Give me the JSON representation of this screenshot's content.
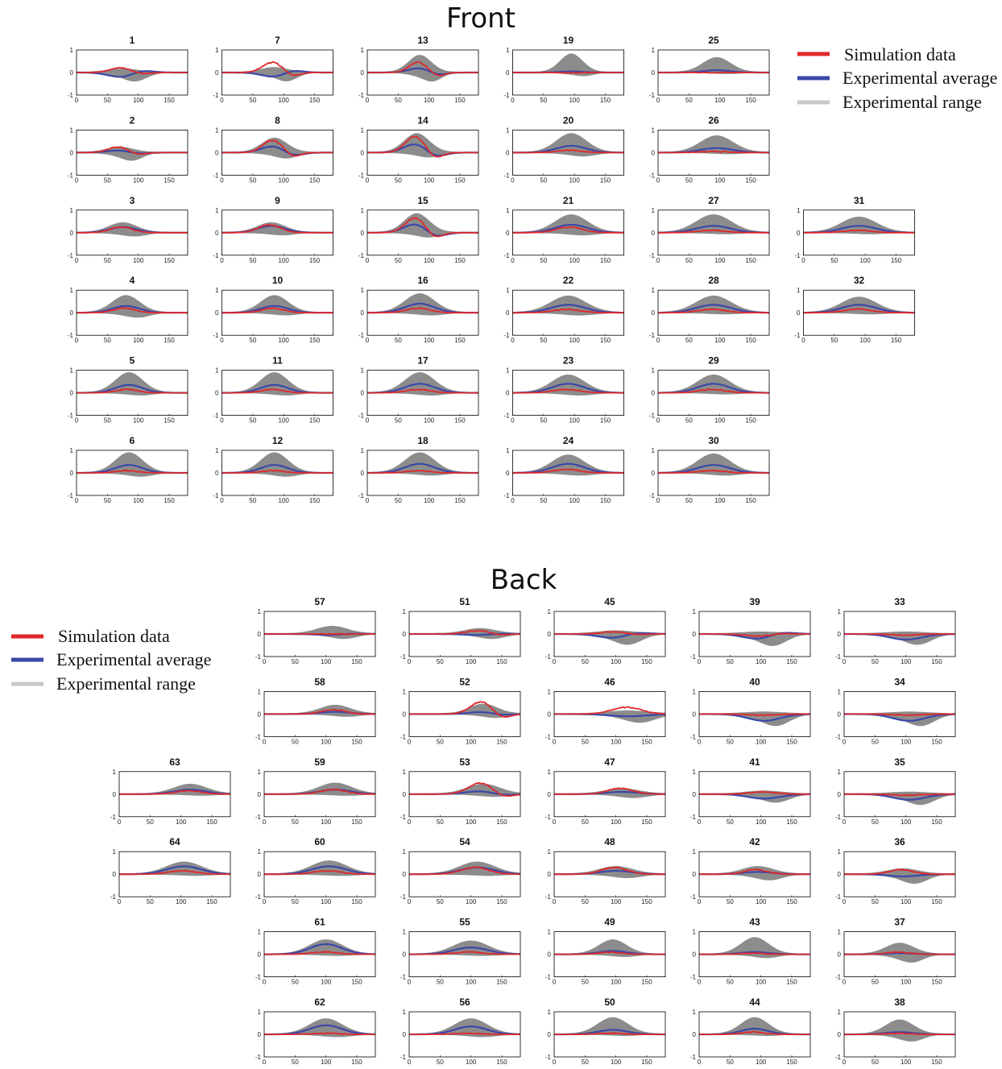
{
  "sections": {
    "front": {
      "title": "Front"
    },
    "back": {
      "title": "Back"
    }
  },
  "legend": {
    "simulation": "Simulation data",
    "average": "Experimental average",
    "range": "Experimental range"
  },
  "colors": {
    "simulation": "#e0282a",
    "average": "#3b48a8",
    "range_fill": "#8c8c8c",
    "range_legend": "#c8c8c8"
  },
  "chart_data": {
    "type": "line",
    "description_units": "x: samples 0-180, y: normalized -1 to 1",
    "xlim": [
      0,
      180
    ],
    "ylim": [
      -1,
      1
    ],
    "xticks": [
      "0",
      "50",
      "100",
      "150"
    ],
    "yticks": [
      "1",
      "0",
      "-1"
    ],
    "series_names": [
      "Simulation data",
      "Experimental average",
      "Experimental range"
    ],
    "panels": [
      {
        "id": "1",
        "group": "front",
        "peak": 75,
        "avg": -0.22,
        "sim": 0.2,
        "rlo": -0.38,
        "rhi": 0.12,
        "width": 22,
        "osc": 1
      },
      {
        "id": "7",
        "group": "front",
        "peak": 85,
        "avg": -0.2,
        "sim": 0.45,
        "rlo": -0.38,
        "rhi": 0.18,
        "width": 20,
        "osc": 1
      },
      {
        "id": "13",
        "group": "front",
        "peak": 85,
        "avg": 0.2,
        "sim": 0.45,
        "rlo": -0.4,
        "rhi": 0.72,
        "width": 18,
        "osc": 1
      },
      {
        "id": "19",
        "group": "front",
        "peak": 95,
        "avg": 0.05,
        "sim": -0.02,
        "rlo": -0.15,
        "rhi": 0.78,
        "width": 18,
        "osc": 0
      },
      {
        "id": "25",
        "group": "front",
        "peak": 95,
        "avg": 0.1,
        "sim": 0.0,
        "rlo": -0.05,
        "rhi": 0.62,
        "width": 22,
        "osc": 0
      },
      {
        "id": "2",
        "group": "front",
        "peak": 70,
        "avg": 0.1,
        "sim": 0.25,
        "rlo": -0.35,
        "rhi": 0.2,
        "width": 20,
        "osc": 1
      },
      {
        "id": "8",
        "group": "front",
        "peak": 85,
        "avg": 0.3,
        "sim": 0.55,
        "rlo": -0.25,
        "rhi": 0.6,
        "width": 20,
        "osc": 1
      },
      {
        "id": "14",
        "group": "front",
        "peak": 80,
        "avg": 0.4,
        "sim": 0.7,
        "rlo": -0.2,
        "rhi": 0.8,
        "width": 20,
        "osc": 1
      },
      {
        "id": "20",
        "group": "front",
        "peak": 95,
        "avg": 0.3,
        "sim": 0.1,
        "rlo": -0.15,
        "rhi": 0.8,
        "width": 24,
        "osc": 0
      },
      {
        "id": "26",
        "group": "front",
        "peak": 95,
        "avg": 0.2,
        "sim": 0.05,
        "rlo": -0.05,
        "rhi": 0.7,
        "width": 26,
        "osc": 0
      },
      {
        "id": "3",
        "group": "front",
        "peak": 75,
        "avg": 0.25,
        "sim": 0.25,
        "rlo": -0.15,
        "rhi": 0.4,
        "width": 22,
        "osc": 0
      },
      {
        "id": "9",
        "group": "front",
        "peak": 80,
        "avg": 0.3,
        "sim": 0.35,
        "rlo": -0.1,
        "rhi": 0.4,
        "width": 22,
        "osc": 0
      },
      {
        "id": "15",
        "group": "front",
        "peak": 80,
        "avg": 0.4,
        "sim": 0.65,
        "rlo": -0.2,
        "rhi": 0.8,
        "width": 20,
        "osc": 1
      },
      {
        "id": "21",
        "group": "front",
        "peak": 95,
        "avg": 0.35,
        "sim": 0.25,
        "rlo": -0.1,
        "rhi": 0.75,
        "width": 26,
        "osc": 0
      },
      {
        "id": "27",
        "group": "front",
        "peak": 90,
        "avg": 0.3,
        "sim": 0.1,
        "rlo": -0.05,
        "rhi": 0.75,
        "width": 28,
        "osc": 0
      },
      {
        "id": "31",
        "group": "front",
        "peak": 90,
        "avg": 0.3,
        "sim": 0.1,
        "rlo": -0.05,
        "rhi": 0.65,
        "width": 28,
        "osc": 0
      },
      {
        "id": "4",
        "group": "front",
        "peak": 80,
        "avg": 0.3,
        "sim": 0.2,
        "rlo": -0.2,
        "rhi": 0.72,
        "width": 22,
        "osc": 0
      },
      {
        "id": "10",
        "group": "front",
        "peak": 85,
        "avg": 0.3,
        "sim": 0.2,
        "rlo": -0.1,
        "rhi": 0.72,
        "width": 22,
        "osc": 0
      },
      {
        "id": "16",
        "group": "front",
        "peak": 85,
        "avg": 0.4,
        "sim": 0.2,
        "rlo": -0.1,
        "rhi": 0.8,
        "width": 24,
        "osc": 0
      },
      {
        "id": "22",
        "group": "front",
        "peak": 90,
        "avg": 0.35,
        "sim": 0.15,
        "rlo": -0.1,
        "rhi": 0.7,
        "width": 28,
        "osc": 0
      },
      {
        "id": "28",
        "group": "front",
        "peak": 90,
        "avg": 0.35,
        "sim": 0.15,
        "rlo": -0.05,
        "rhi": 0.7,
        "width": 28,
        "osc": 0
      },
      {
        "id": "32",
        "group": "front",
        "peak": 90,
        "avg": 0.35,
        "sim": 0.15,
        "rlo": -0.05,
        "rhi": 0.65,
        "width": 28,
        "osc": 0
      },
      {
        "id": "5",
        "group": "front",
        "peak": 85,
        "avg": 0.35,
        "sim": 0.15,
        "rlo": -0.1,
        "rhi": 0.85,
        "width": 22,
        "osc": 0
      },
      {
        "id": "11",
        "group": "front",
        "peak": 85,
        "avg": 0.35,
        "sim": 0.15,
        "rlo": -0.1,
        "rhi": 0.85,
        "width": 22,
        "osc": 0
      },
      {
        "id": "17",
        "group": "front",
        "peak": 85,
        "avg": 0.4,
        "sim": 0.15,
        "rlo": -0.1,
        "rhi": 0.85,
        "width": 24,
        "osc": 0
      },
      {
        "id": "23",
        "group": "front",
        "peak": 90,
        "avg": 0.4,
        "sim": 0.15,
        "rlo": -0.1,
        "rhi": 0.75,
        "width": 26,
        "osc": 0
      },
      {
        "id": "29",
        "group": "front",
        "peak": 90,
        "avg": 0.4,
        "sim": 0.15,
        "rlo": -0.05,
        "rhi": 0.75,
        "width": 26,
        "osc": 0
      },
      {
        "id": "6",
        "group": "front",
        "peak": 85,
        "avg": 0.35,
        "sim": 0.1,
        "rlo": -0.15,
        "rhi": 0.85,
        "width": 22,
        "osc": 0
      },
      {
        "id": "12",
        "group": "front",
        "peak": 85,
        "avg": 0.35,
        "sim": 0.1,
        "rlo": -0.15,
        "rhi": 0.85,
        "width": 22,
        "osc": 0
      },
      {
        "id": "18",
        "group": "front",
        "peak": 85,
        "avg": 0.4,
        "sim": 0.1,
        "rlo": -0.1,
        "rhi": 0.85,
        "width": 24,
        "osc": 0
      },
      {
        "id": "24",
        "group": "front",
        "peak": 90,
        "avg": 0.4,
        "sim": 0.15,
        "rlo": -0.1,
        "rhi": 0.75,
        "width": 26,
        "osc": 0
      },
      {
        "id": "30",
        "group": "front",
        "peak": 90,
        "avg": 0.35,
        "sim": 0.1,
        "rlo": -0.1,
        "rhi": 0.8,
        "width": 26,
        "osc": 0
      },
      {
        "id": "57",
        "group": "back",
        "peak": 110,
        "avg": -0.05,
        "sim": 0.0,
        "rlo": -0.2,
        "rhi": 0.3,
        "width": 24,
        "osc": 1
      },
      {
        "id": "51",
        "group": "back",
        "peak": 115,
        "avg": -0.05,
        "sim": 0.15,
        "rlo": -0.2,
        "rhi": 0.2,
        "width": 24,
        "osc": 1
      },
      {
        "id": "45",
        "group": "back",
        "peak": 100,
        "avg": -0.2,
        "sim": 0.1,
        "rlo": -0.45,
        "rhi": 0.1,
        "width": 26,
        "osc": 1
      },
      {
        "id": "39",
        "group": "back",
        "peak": 100,
        "avg": -0.25,
        "sim": -0.1,
        "rlo": -0.5,
        "rhi": 0.05,
        "width": 26,
        "osc": 1
      },
      {
        "id": "33",
        "group": "back",
        "peak": 100,
        "avg": -0.25,
        "sim": -0.05,
        "rlo": -0.45,
        "rhi": 0.05,
        "width": 26,
        "osc": 0
      },
      {
        "id": "58",
        "group": "back",
        "peak": 115,
        "avg": 0.1,
        "sim": 0.2,
        "rlo": -0.1,
        "rhi": 0.35,
        "width": 24,
        "osc": 0
      },
      {
        "id": "52",
        "group": "back",
        "peak": 120,
        "avg": 0.1,
        "sim": 0.55,
        "rlo": -0.15,
        "rhi": 0.4,
        "width": 22,
        "osc": 1
      },
      {
        "id": "46",
        "group": "back",
        "peak": 120,
        "avg": -0.1,
        "sim": 0.3,
        "rlo": -0.35,
        "rhi": 0.1,
        "width": 30,
        "osc": 0
      },
      {
        "id": "40",
        "group": "back",
        "peak": 105,
        "avg": -0.3,
        "sim": -0.05,
        "rlo": -0.5,
        "rhi": 0.05,
        "width": 26,
        "osc": 0
      },
      {
        "id": "34",
        "group": "back",
        "peak": 105,
        "avg": -0.3,
        "sim": -0.05,
        "rlo": -0.5,
        "rhi": 0.05,
        "width": 26,
        "osc": 0
      },
      {
        "id": "63",
        "group": "back",
        "peak": 115,
        "avg": 0.2,
        "sim": 0.15,
        "rlo": -0.05,
        "rhi": 0.4,
        "width": 26,
        "osc": 0
      },
      {
        "id": "59",
        "group": "back",
        "peak": 115,
        "avg": 0.2,
        "sim": 0.2,
        "rlo": -0.05,
        "rhi": 0.45,
        "width": 26,
        "osc": 0
      },
      {
        "id": "53",
        "group": "back",
        "peak": 120,
        "avg": 0.15,
        "sim": 0.5,
        "rlo": -0.1,
        "rhi": 0.4,
        "width": 26,
        "osc": 1
      },
      {
        "id": "47",
        "group": "back",
        "peak": 110,
        "avg": 0.1,
        "sim": 0.25,
        "rlo": -0.15,
        "rhi": 0.2,
        "width": 26,
        "osc": 0
      },
      {
        "id": "41",
        "group": "back",
        "peak": 105,
        "avg": -0.2,
        "sim": 0.1,
        "rlo": -0.35,
        "rhi": 0.1,
        "width": 26,
        "osc": 0
      },
      {
        "id": "35",
        "group": "back",
        "peak": 105,
        "avg": -0.25,
        "sim": -0.05,
        "rlo": -0.45,
        "rhi": 0.05,
        "width": 26,
        "osc": 0
      },
      {
        "id": "64",
        "group": "back",
        "peak": 105,
        "avg": 0.35,
        "sim": 0.15,
        "rlo": -0.05,
        "rhi": 0.5,
        "width": 28,
        "osc": 0
      },
      {
        "id": "60",
        "group": "back",
        "peak": 105,
        "avg": 0.35,
        "sim": 0.15,
        "rlo": -0.05,
        "rhi": 0.55,
        "width": 28,
        "osc": 0
      },
      {
        "id": "54",
        "group": "back",
        "peak": 110,
        "avg": 0.3,
        "sim": 0.3,
        "rlo": -0.05,
        "rhi": 0.5,
        "width": 28,
        "osc": 0
      },
      {
        "id": "48",
        "group": "back",
        "peak": 100,
        "avg": 0.15,
        "sim": 0.3,
        "rlo": -0.15,
        "rhi": 0.3,
        "width": 26,
        "osc": 0
      },
      {
        "id": "42",
        "group": "back",
        "peak": 95,
        "avg": 0.1,
        "sim": 0.2,
        "rlo": -0.25,
        "rhi": 0.3,
        "width": 24,
        "osc": 0
      },
      {
        "id": "36",
        "group": "back",
        "peak": 95,
        "avg": -0.1,
        "sim": 0.2,
        "rlo": -0.4,
        "rhi": 0.2,
        "width": 24,
        "osc": 0
      },
      {
        "id": "61",
        "group": "back",
        "peak": 100,
        "avg": 0.45,
        "sim": 0.1,
        "rlo": -0.05,
        "rhi": 0.6,
        "width": 26,
        "osc": 0
      },
      {
        "id": "55",
        "group": "back",
        "peak": 100,
        "avg": 0.3,
        "sim": 0.1,
        "rlo": -0.05,
        "rhi": 0.55,
        "width": 28,
        "osc": 0
      },
      {
        "id": "49",
        "group": "back",
        "peak": 95,
        "avg": 0.15,
        "sim": 0.1,
        "rlo": -0.1,
        "rhi": 0.6,
        "width": 22,
        "osc": 0
      },
      {
        "id": "43",
        "group": "back",
        "peak": 90,
        "avg": 0.1,
        "sim": 0.05,
        "rlo": -0.15,
        "rhi": 0.7,
        "width": 22,
        "osc": 0
      },
      {
        "id": "37",
        "group": "back",
        "peak": 90,
        "avg": 0.05,
        "sim": 0.1,
        "rlo": -0.35,
        "rhi": 0.45,
        "width": 22,
        "osc": 0
      },
      {
        "id": "62",
        "group": "back",
        "peak": 100,
        "avg": 0.4,
        "sim": 0.05,
        "rlo": -0.1,
        "rhi": 0.65,
        "width": 26,
        "osc": 0
      },
      {
        "id": "56",
        "group": "back",
        "peak": 100,
        "avg": 0.35,
        "sim": 0.05,
        "rlo": -0.1,
        "rhi": 0.65,
        "width": 26,
        "osc": 0
      },
      {
        "id": "50",
        "group": "back",
        "peak": 95,
        "avg": 0.2,
        "sim": 0.05,
        "rlo": -0.05,
        "rhi": 0.7,
        "width": 24,
        "osc": 0
      },
      {
        "id": "44",
        "group": "back",
        "peak": 90,
        "avg": 0.25,
        "sim": 0.1,
        "rlo": -0.05,
        "rhi": 0.7,
        "width": 22,
        "osc": 0
      },
      {
        "id": "38",
        "group": "back",
        "peak": 90,
        "avg": 0.1,
        "sim": 0.05,
        "rlo": -0.3,
        "rhi": 0.6,
        "width": 22,
        "osc": 0
      }
    ]
  }
}
